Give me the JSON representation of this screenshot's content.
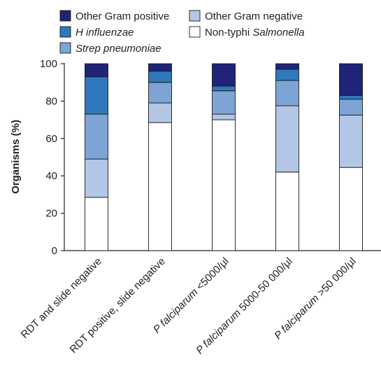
{
  "chart_data": {
    "type": "bar",
    "stacked": true,
    "ylabel": "Organisms (%)",
    "ylim": [
      0,
      100
    ],
    "yticks": [
      0,
      20,
      40,
      60,
      80,
      100
    ],
    "grid": false,
    "legend_position": "top",
    "categories": [
      {
        "prefix": "",
        "italic": "",
        "suffix": "RDT and slide negative"
      },
      {
        "prefix": "",
        "italic": "",
        "suffix": "RDT positive, slide negative"
      },
      {
        "prefix": "",
        "italic": "P falciparum",
        "suffix": " <5000/µl"
      },
      {
        "prefix": "",
        "italic": "P falciparum",
        "suffix": " 5000-50 000/µl"
      },
      {
        "prefix": "",
        "italic": "P falciparum",
        "suffix": " >50 000/µl"
      }
    ],
    "series": [
      {
        "key": "salmonella",
        "name_plain": "Non-typhi ",
        "name_italic": "Salmonella",
        "color": "#ffffff",
        "values": [
          28.5,
          68.5,
          70,
          42,
          44.5
        ]
      },
      {
        "key": "other_gram_neg",
        "name_plain": "Other Gram negative",
        "name_italic": "",
        "color": "#b3c6e6",
        "values": [
          20.5,
          10.5,
          3,
          35.5,
          28
        ]
      },
      {
        "key": "strep",
        "name_plain": "",
        "name_italic": "Strep pneumoniae",
        "color": "#7ea4d6",
        "values": [
          24,
          11,
          12.5,
          13.5,
          8.5
        ]
      },
      {
        "key": "hinfluenzae",
        "name_plain": "",
        "name_italic": "H influenzae",
        "color": "#2f78bc",
        "values": [
          20,
          6,
          2.5,
          6,
          2
        ]
      },
      {
        "key": "other_gram_pos",
        "name_plain": "Other Gram positive",
        "name_italic": "",
        "color": "#1f2478",
        "values": [
          7,
          4,
          12,
          3,
          17
        ]
      }
    ],
    "legend_order": [
      "other_gram_pos",
      "other_gram_neg",
      "hinfluenzae",
      "salmonella",
      "strep"
    ]
  }
}
